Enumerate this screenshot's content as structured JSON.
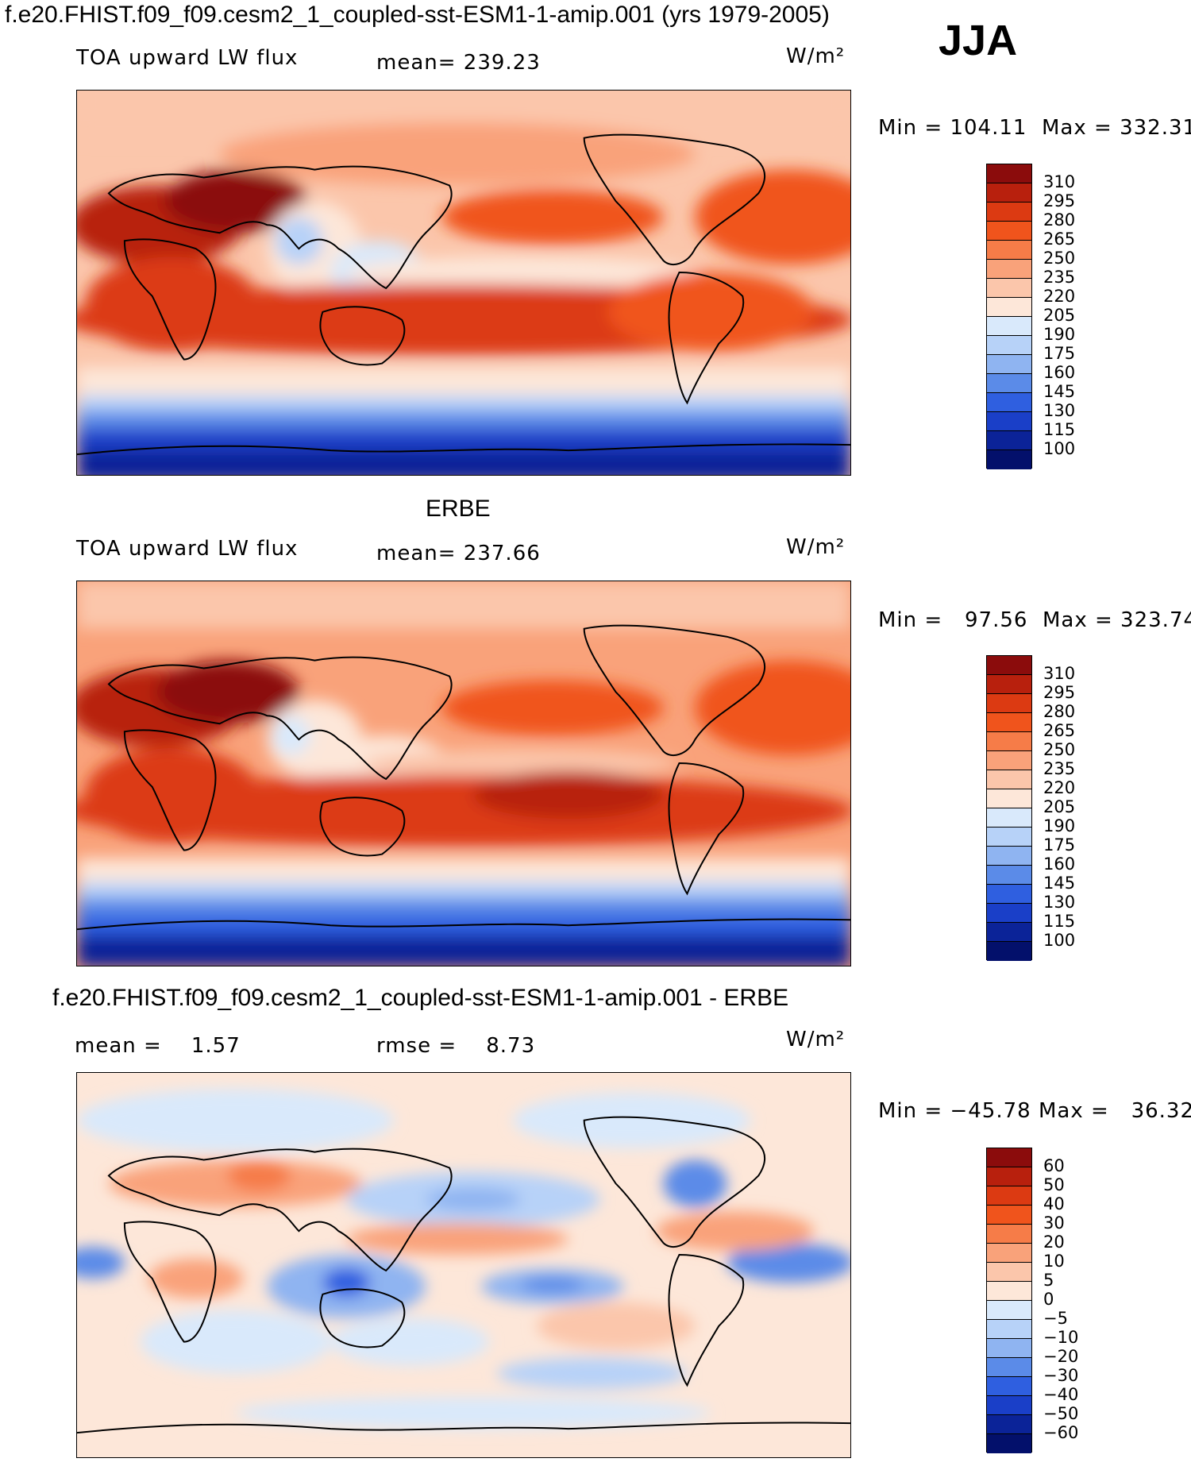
{
  "header": {
    "title": "f.e20.FHIST.f09_f09.cesm2_1_coupled-sst-ESM1-1-amip.001 (yrs 1979-2005)",
    "season": "JJA"
  },
  "panel1": {
    "variable": "TOA upward LW flux",
    "mean_label": "mean=",
    "mean_value": "239.23",
    "units": "W/m²",
    "min_label": "Min",
    "min_value": "104.11",
    "max_label": "Max",
    "max_value": "332.31"
  },
  "panel2": {
    "heading": "ERBE",
    "variable": "TOA upward LW flux",
    "mean_label": "mean=",
    "mean_value": "237.66",
    "units": "W/m²",
    "min_label": "Min",
    "min_value": "97.56",
    "max_label": "Max",
    "max_value": "323.74"
  },
  "panel3": {
    "heading": "f.e20.FHIST.f09_f09.cesm2_1_coupled-sst-ESM1-1-amip.001 - ERBE",
    "mean_label": "mean =",
    "mean_value": "1.57",
    "rmse_label": "rmse =",
    "rmse_value": "8.73",
    "units": "W/m²",
    "min_label": "Min",
    "min_value": "−45.78",
    "max_label": "Max",
    "max_value": "36.32"
  },
  "colorbar_abs": {
    "labels": [
      "310",
      "295",
      "280",
      "265",
      "250",
      "235",
      "220",
      "205",
      "190",
      "175",
      "160",
      "145",
      "130",
      "115",
      "100"
    ],
    "colors": [
      "#8b0c0c",
      "#b8200d",
      "#dc3a12",
      "#f0541c",
      "#f67c48",
      "#f9a27a",
      "#fbc6ab",
      "#fde7d9",
      "#d9e9fb",
      "#b7d2f8",
      "#8fb4f1",
      "#5b8be8",
      "#2f5fe0",
      "#1a3fc8",
      "#0b2398",
      "#03106b"
    ]
  },
  "colorbar_diff": {
    "labels": [
      "60",
      "50",
      "40",
      "30",
      "20",
      "10",
      "5",
      "0",
      "−5",
      "−10",
      "−20",
      "−30",
      "−40",
      "−50",
      "−60"
    ],
    "colors": [
      "#8b0c0c",
      "#b8200d",
      "#dc3a12",
      "#f0541c",
      "#f67c48",
      "#f9a27a",
      "#fbc6ab",
      "#fde7d9",
      "#d9e9fb",
      "#b7d2f8",
      "#8fb4f1",
      "#5b8be8",
      "#2f5fe0",
      "#1a3fc8",
      "#0b2398",
      "#03106b"
    ]
  }
}
